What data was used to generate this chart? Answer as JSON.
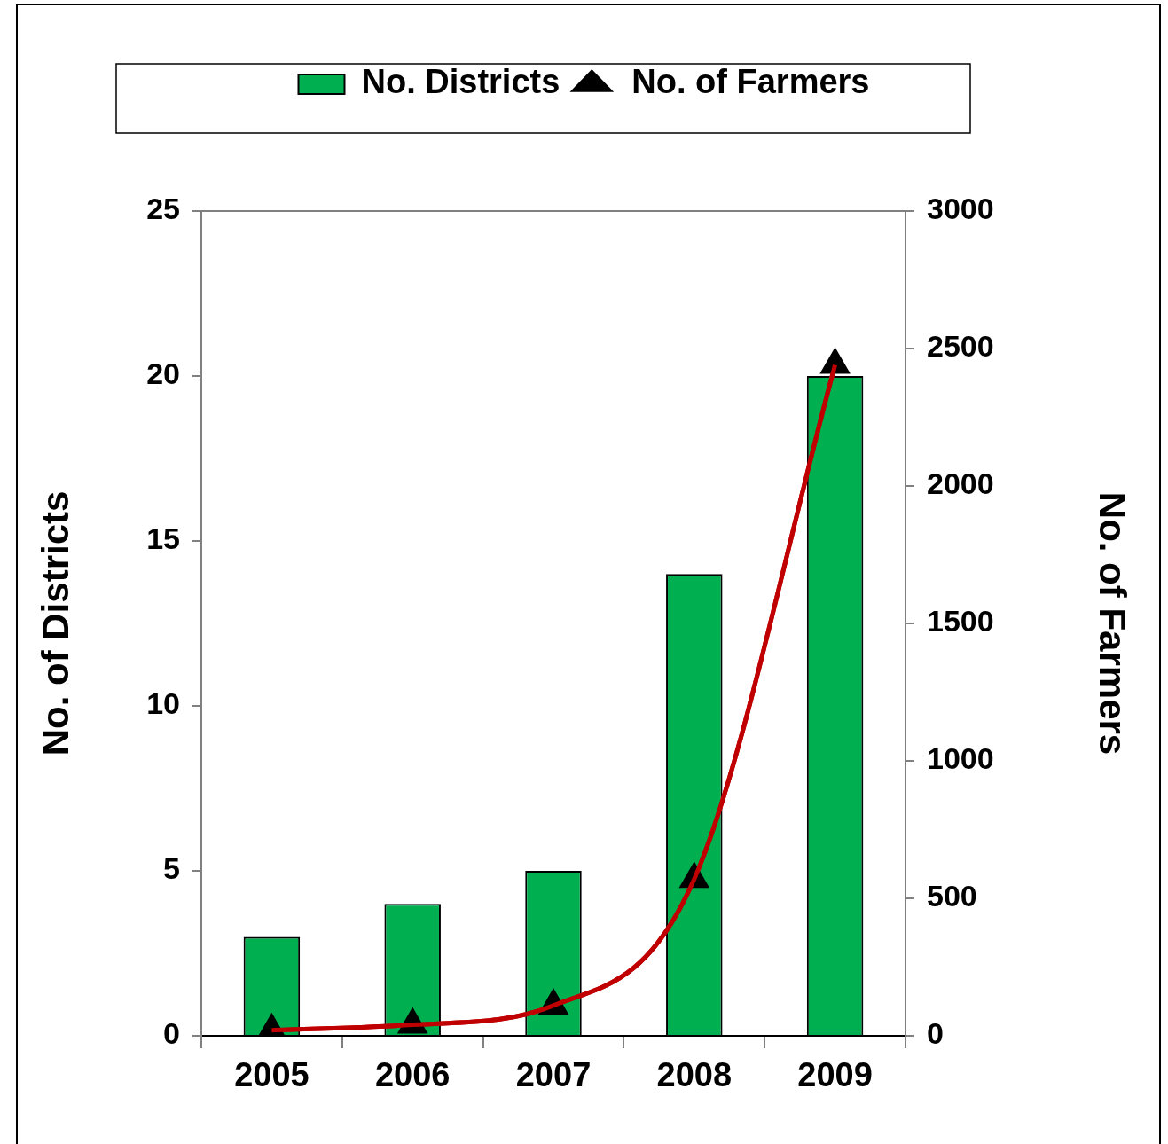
{
  "chart_data": {
    "type": "bar",
    "categories": [
      "2005",
      "2006",
      "2007",
      "2008",
      "2009"
    ],
    "series": [
      {
        "name": "No. Districts",
        "color": "#00b050",
        "values": [
          3,
          4,
          5,
          14,
          20
        ]
      },
      {
        "name": "No. of Farmers",
        "type": "line",
        "axis": "y2",
        "color": "#c00000",
        "marker": "triangle",
        "values": [
          20,
          40,
          110,
          570,
          2440
        ]
      }
    ],
    "ylabel": "No. of Districts",
    "y2label": "No. of Farmers",
    "ylim": [
      0,
      25
    ],
    "yticks": [
      0,
      5,
      10,
      15,
      20,
      25
    ],
    "y2lim": [
      0,
      3000
    ],
    "y2ticks": [
      0,
      500,
      1000,
      1500,
      2000,
      2500,
      3000
    ],
    "grid": false,
    "legend": "top"
  }
}
